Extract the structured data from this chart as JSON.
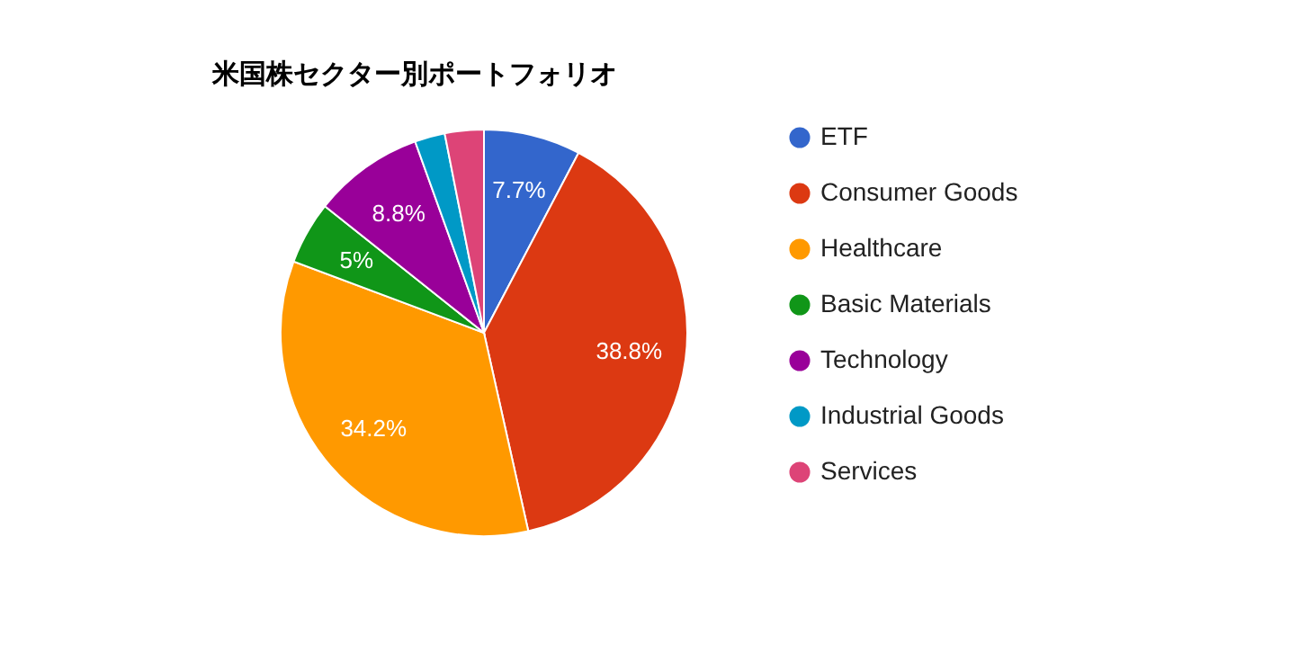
{
  "chart_data": {
    "type": "pie",
    "title": "米国株セクター別ポートフォリオ",
    "categories": [
      "ETF",
      "Consumer Goods",
      "Healthcare",
      "Basic Materials",
      "Technology",
      "Industrial Goods",
      "Services"
    ],
    "values": [
      7.7,
      38.8,
      34.2,
      5,
      8.8,
      2.4,
      3.1
    ],
    "value_labels": [
      "7.7%",
      "38.8%",
      "34.2%",
      "5%",
      "8.8%",
      null,
      null
    ],
    "colors": [
      "#3366cc",
      "#dc3912",
      "#ff9900",
      "#109618",
      "#990099",
      "#0099c6",
      "#dd4477"
    ],
    "legend": "right"
  }
}
